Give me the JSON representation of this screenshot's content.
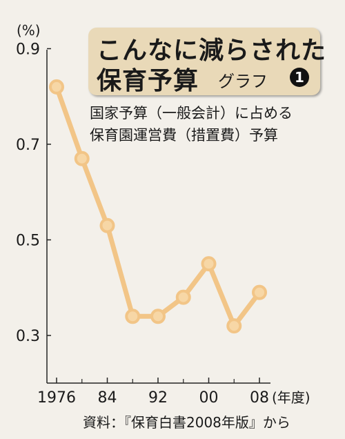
{
  "chart_data": {
    "type": "line",
    "title": "こんなに減らされた保育予算",
    "title_line1": "こんなに減らされた",
    "title_line2": "保育予算",
    "graph_label": "グラフ",
    "graph_number": "1",
    "subtitle_line1": "国家予算（一般会計）に占める",
    "subtitle_line2": "保育園運営費（措置費）予算",
    "y_unit": "(%)",
    "x_unit": "(年度)",
    "source": "資料：『保育白書2008年版』から",
    "ylim": [
      0.25,
      0.9
    ],
    "xlim": [
      1975,
      2009
    ],
    "y_ticks": [
      0.3,
      0.5,
      0.7,
      0.9
    ],
    "y_tick_labels": [
      "0.3",
      "0.5",
      "0.7",
      "0.9"
    ],
    "x_ticks": [
      1976,
      1984,
      1992,
      2000,
      2008
    ],
    "x_tick_labels": [
      "1976",
      "84",
      "92",
      "00",
      "08"
    ],
    "x_minor_ticks": [
      1980,
      1988,
      1996,
      2004
    ],
    "x": [
      1976,
      1980,
      1984,
      1988,
      1992,
      1996,
      2000,
      2004,
      2008
    ],
    "values": [
      0.82,
      0.67,
      0.53,
      0.34,
      0.34,
      0.38,
      0.45,
      0.32,
      0.39
    ],
    "grid": false,
    "series_color": "#f2c587",
    "marker_fill": "#f7d7a6"
  }
}
